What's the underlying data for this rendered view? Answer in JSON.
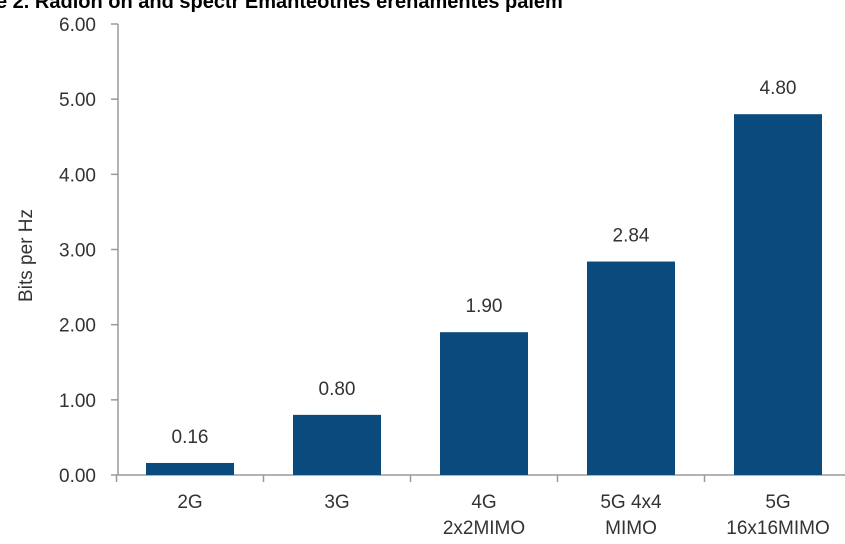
{
  "header": {
    "clipped_title": "e 2. Radion on and spectr Emanteothes erenamentes palem"
  },
  "chart_data": {
    "type": "bar",
    "categories": [
      "2G",
      "3G",
      "4G\n2x2MIMO",
      "5G 4x4\nMIMO",
      "5G\n16x16MIMO"
    ],
    "values": [
      0.16,
      0.8,
      1.9,
      2.84,
      4.8
    ],
    "value_labels": [
      "0.16",
      "0.80",
      "1.90",
      "2.84",
      "4.80"
    ],
    "title": "",
    "xlabel": "",
    "ylabel": "Bits per Hz",
    "ylim": [
      0,
      6
    ],
    "yticks": [
      "0.00",
      "1.00",
      "2.00",
      "3.00",
      "4.00",
      "5.00",
      "6.00"
    ],
    "bar_color": "#0b4a7d",
    "grid": false,
    "legend": "none"
  }
}
